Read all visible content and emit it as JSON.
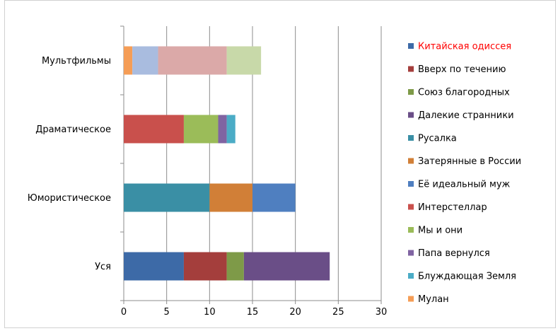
{
  "chart_data": {
    "type": "bar",
    "orientation": "horizontal",
    "stacked": true,
    "categories": [
      "Мультфильмы",
      "Драматическое",
      "Юмористическое",
      "Уся"
    ],
    "xlim": [
      0,
      30
    ],
    "xticks": [
      0,
      5,
      10,
      15,
      20,
      25,
      30
    ],
    "grid": "vertical",
    "legend_position": "right",
    "legend_highlight": {
      "index": 0,
      "color": "#ff0000"
    },
    "series": [
      {
        "name": "Китайская одиссея",
        "color": "#3d6aa7",
        "values": [
          0,
          0,
          0,
          7
        ]
      },
      {
        "name": "Вверх по течению",
        "color": "#a43e3c",
        "values": [
          0,
          0,
          0,
          5
        ]
      },
      {
        "name": "Союз благородных",
        "color": "#7e9a48",
        "values": [
          0,
          0,
          0,
          2
        ]
      },
      {
        "name": "Далекие странники",
        "color": "#6a4e87",
        "values": [
          0,
          0,
          0,
          10
        ]
      },
      {
        "name": "Русалка",
        "color": "#3a8fa5",
        "values": [
          0,
          0,
          10,
          0
        ]
      },
      {
        "name": "Затерянные  в России",
        "color": "#d17f37",
        "values": [
          0,
          0,
          5,
          0
        ]
      },
      {
        "name": "Её идеальный муж",
        "color": "#4f7fc0",
        "values": [
          0,
          0,
          5,
          0
        ]
      },
      {
        "name": "Интерстеллар",
        "color": "#c9504c",
        "values": [
          0,
          7,
          0,
          0
        ]
      },
      {
        "name": "Мы и они",
        "color": "#9bbc59",
        "values": [
          0,
          4,
          0,
          0
        ]
      },
      {
        "name": "Папа вернулся",
        "color": "#8064a2",
        "values": [
          0,
          1,
          0,
          0
        ]
      },
      {
        "name": "Блуждающая Земля",
        "color": "#4bacc6",
        "values": [
          0,
          1,
          0,
          0
        ]
      },
      {
        "name": "Мулан",
        "color": "#f59d56",
        "values": [
          1,
          0,
          0,
          0
        ]
      },
      {
        "name": "",
        "color": "#a9bcdf",
        "values": [
          3,
          0,
          0,
          0
        ]
      },
      {
        "name": "",
        "color": "#dba9a8",
        "values": [
          8,
          0,
          0,
          0
        ]
      },
      {
        "name": "",
        "color": "#c8d9a9",
        "values": [
          4,
          0,
          0,
          0
        ]
      }
    ]
  }
}
